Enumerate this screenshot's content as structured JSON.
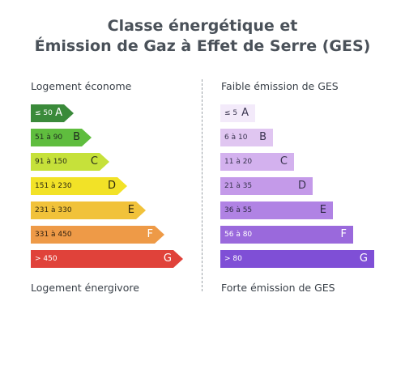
{
  "title": {
    "line1": "Classe énergétique et",
    "line2": "Émission de Gaz à Effet de Serre (GES)"
  },
  "energy": {
    "top_label": "Logement économe",
    "bottom_label": "Logement énergivore",
    "classes": [
      {
        "letter": "A",
        "range": "≤ 50",
        "color": "#3a8a3a",
        "text_color": "#ffffff",
        "letter_color": "#ffffff"
      },
      {
        "letter": "B",
        "range": "51 à 90",
        "color": "#5fbd3e",
        "text_color": "#1f2a1f",
        "letter_color": "#1f2a1f"
      },
      {
        "letter": "C",
        "range": "91 à 150",
        "color": "#c6e13a",
        "text_color": "#2a2f1a",
        "letter_color": "#2a2f1a"
      },
      {
        "letter": "D",
        "range": "151 à 230",
        "color": "#f2e227",
        "text_color": "#2d2a10",
        "letter_color": "#2d2a10"
      },
      {
        "letter": "E",
        "range": "231 à 330",
        "color": "#f1c23a",
        "text_color": "#2f2710",
        "letter_color": "#2f2710"
      },
      {
        "letter": "F",
        "range": "331 à 450",
        "color": "#ee9a47",
        "text_color": "#2f2010",
        "letter_color": "#ffffff"
      },
      {
        "letter": "G",
        "range": "> 450",
        "color": "#e0423a",
        "text_color": "#ffffff",
        "letter_color": "#ffffff"
      }
    ]
  },
  "ges": {
    "top_label": "Faible émission de GES",
    "bottom_label": "Forte émission de GES",
    "classes": [
      {
        "letter": "A",
        "range": "≤ 5",
        "color": "#f3eafa",
        "text_color": "#3a3550",
        "letter_color": "#3a3550"
      },
      {
        "letter": "B",
        "range": "6 à 10",
        "color": "#e0c6f1",
        "text_color": "#3a3550",
        "letter_color": "#3a3550"
      },
      {
        "letter": "C",
        "range": "11 à 20",
        "color": "#d3b1ee",
        "text_color": "#3a3550",
        "letter_color": "#3a3550"
      },
      {
        "letter": "D",
        "range": "21 à 35",
        "color": "#c49ae9",
        "text_color": "#3a3550",
        "letter_color": "#3a3550"
      },
      {
        "letter": "E",
        "range": "36 à 55",
        "color": "#b083e4",
        "text_color": "#2f2a45",
        "letter_color": "#2f2a45"
      },
      {
        "letter": "F",
        "range": "56 à 80",
        "color": "#9a69dc",
        "text_color": "#ffffff",
        "letter_color": "#ffffff"
      },
      {
        "letter": "G",
        "range": "> 80",
        "color": "#7f4fd6",
        "text_color": "#ffffff",
        "letter_color": "#ffffff"
      }
    ]
  }
}
